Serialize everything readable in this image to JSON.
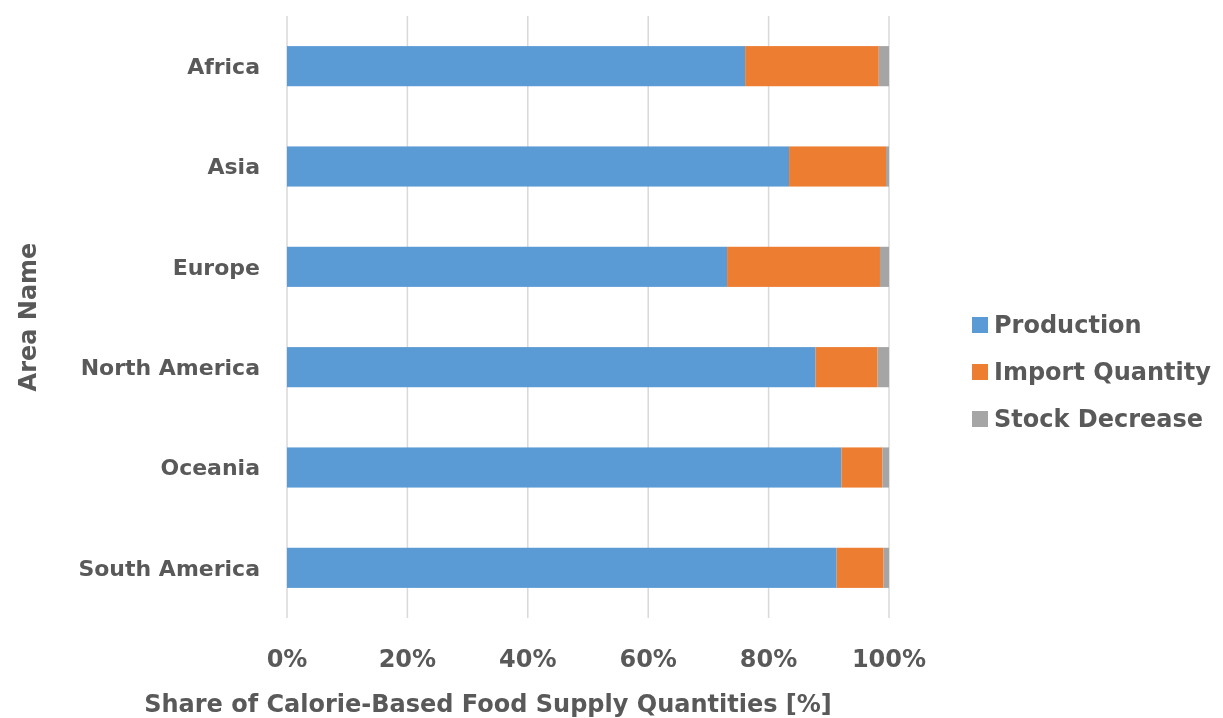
{
  "chart_data": {
    "type": "bar",
    "orientation": "horizontal",
    "stacked": true,
    "categories": [
      "Africa",
      "Asia",
      "Europe",
      "North America",
      "Oceania",
      "South America"
    ],
    "series": [
      {
        "name": "Production",
        "color": "#5b9bd5",
        "values": [
          76.1,
          83.4,
          73.1,
          87.8,
          92.1,
          91.3
        ]
      },
      {
        "name": "Import Quantity",
        "color": "#ed7d31",
        "values": [
          22.2,
          16.1,
          25.4,
          10.3,
          6.8,
          7.8
        ]
      },
      {
        "name": "Stock Decrease",
        "color": "#a5a5a5",
        "values": [
          1.7,
          0.5,
          1.5,
          1.9,
          1.1,
          0.9
        ]
      }
    ],
    "xlim": [
      0,
      100
    ],
    "xticks": [
      {
        "value": 0,
        "label": "0%"
      },
      {
        "value": 20,
        "label": "20%"
      },
      {
        "value": 40,
        "label": "40%"
      },
      {
        "value": 60,
        "label": "60%"
      },
      {
        "value": 80,
        "label": "80%"
      },
      {
        "value": 100,
        "label": "100%"
      }
    ],
    "xlabel": "Share of Calorie-Based Food Supply Quantities [%]",
    "ylabel": "Area Name",
    "grid": "x",
    "legend": "right"
  }
}
